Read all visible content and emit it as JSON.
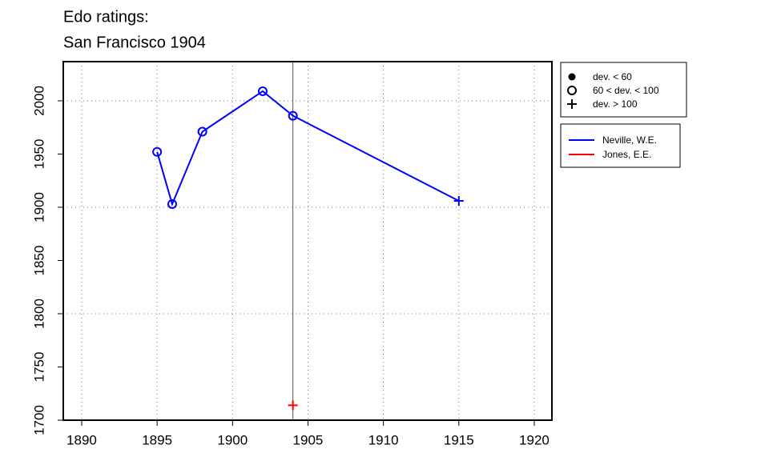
{
  "chart_data": {
    "type": "line",
    "title": "Edo ratings:",
    "subtitle": "San Francisco 1904",
    "xlim": [
      1888.78,
      1921.17
    ],
    "ylim": [
      1700,
      2036.8
    ],
    "xticks": [
      1890,
      1895,
      1900,
      1905,
      1910,
      1915,
      1920
    ],
    "yticks": [
      1700,
      1750,
      1800,
      1850,
      1900,
      1950,
      2000
    ],
    "grid": true,
    "ygrid": [
      1800,
      1900,
      2000
    ],
    "vline": 1904,
    "symbol_legend": [
      {
        "symbol": "dot",
        "label": "dev. < 60"
      },
      {
        "symbol": "circle",
        "label": "60 < dev. < 100"
      },
      {
        "symbol": "plus",
        "label": "dev. > 100"
      }
    ],
    "series": [
      {
        "name": "Neville, W.E.",
        "color": "#0000ff",
        "x": [
          1895,
          1896,
          1898,
          1902,
          1904,
          1915
        ],
        "values": [
          1952,
          1903,
          1971,
          2009,
          1986,
          1906
        ],
        "symbols": [
          1,
          1,
          1,
          1,
          1,
          2
        ]
      },
      {
        "name": "Jones, E.E.",
        "color": "#ff0000",
        "x": [
          1904
        ],
        "values": [
          1714
        ],
        "symbols": [
          2
        ]
      }
    ]
  }
}
